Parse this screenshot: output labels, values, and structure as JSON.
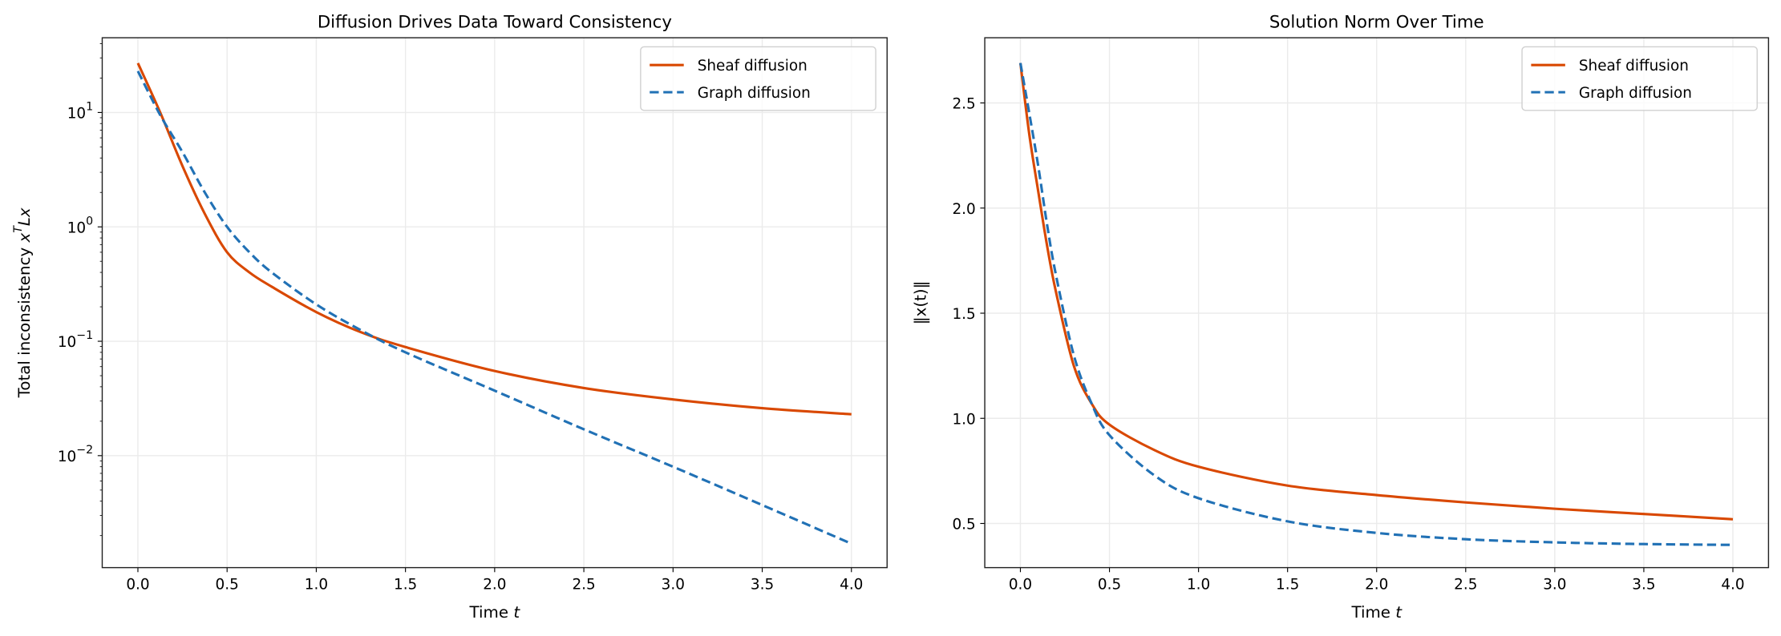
{
  "chart_data": [
    {
      "type": "line",
      "title": "Diffusion Drives Data Toward Consistency",
      "xlabel": "Time t",
      "ylabel": "Total inconsistency x^T L x",
      "xlim": [
        -0.2,
        4.2
      ],
      "ylim": [
        0.00105,
        45
      ],
      "yscale": "log",
      "xticks": [
        "0.0",
        "0.5",
        "1.0",
        "1.5",
        "2.0",
        "2.5",
        "3.0",
        "3.5",
        "4.0"
      ],
      "yticks": [
        "10^-2",
        "10^-1",
        "10^0",
        "10^1"
      ],
      "grid": true,
      "legend": "top-right",
      "series": [
        {
          "name": "Sheaf diffusion",
          "color": "#d94801",
          "style": "solid",
          "x": [
            0,
            0.125,
            0.25,
            0.375,
            0.5,
            0.625,
            0.75,
            1.0,
            1.25,
            1.5,
            2.0,
            2.5,
            3.0,
            3.5,
            4.0
          ],
          "y": [
            27,
            10,
            3.4,
            1.3,
            0.6,
            0.4,
            0.3,
            0.18,
            0.12,
            0.089,
            0.055,
            0.039,
            0.031,
            0.026,
            0.023
          ]
        },
        {
          "name": "Graph diffusion",
          "color": "#2171b5",
          "style": "dashed",
          "x": [
            0,
            0.125,
            0.25,
            0.375,
            0.5,
            0.625,
            0.75,
            1.0,
            1.25,
            1.5,
            2.0,
            2.5,
            3.0,
            3.5,
            4.0
          ],
          "y": [
            23,
            9.5,
            4.5,
            2.0,
            1.0,
            0.6,
            0.4,
            0.21,
            0.125,
            0.08,
            0.037,
            0.017,
            0.008,
            0.0037,
            0.0017
          ]
        }
      ]
    },
    {
      "type": "line",
      "title": "Solution Norm Over Time",
      "xlabel": "Time t",
      "ylabel": "‖x(t)‖",
      "xlim": [
        -0.2,
        4.2
      ],
      "ylim": [
        0.29,
        2.81
      ],
      "yscale": "linear",
      "xticks": [
        "0.0",
        "0.5",
        "1.0",
        "1.5",
        "2.0",
        "2.5",
        "3.0",
        "3.5",
        "4.0"
      ],
      "yticks": [
        "0.5",
        "1.0",
        "1.5",
        "2.0",
        "2.5"
      ],
      "grid": true,
      "legend": "top-right",
      "series": [
        {
          "name": "Sheaf diffusion",
          "color": "#d94801",
          "style": "solid",
          "x": [
            0,
            0.05,
            0.1,
            0.15,
            0.2,
            0.3,
            0.4,
            0.5,
            0.75,
            1.0,
            1.5,
            2.0,
            2.5,
            3.0,
            3.5,
            4.0
          ],
          "y": [
            2.69,
            2.35,
            2.08,
            1.82,
            1.6,
            1.25,
            1.07,
            0.97,
            0.85,
            0.77,
            0.68,
            0.635,
            0.6,
            0.57,
            0.545,
            0.52
          ]
        },
        {
          "name": "Graph diffusion",
          "color": "#2171b5",
          "style": "dashed",
          "x": [
            0,
            0.05,
            0.1,
            0.15,
            0.2,
            0.3,
            0.4,
            0.5,
            0.75,
            1.0,
            1.5,
            2.0,
            2.5,
            3.0,
            3.5,
            4.0
          ],
          "y": [
            2.69,
            2.45,
            2.2,
            1.92,
            1.68,
            1.3,
            1.07,
            0.92,
            0.73,
            0.62,
            0.51,
            0.455,
            0.425,
            0.41,
            0.402,
            0.398
          ]
        }
      ]
    }
  ]
}
